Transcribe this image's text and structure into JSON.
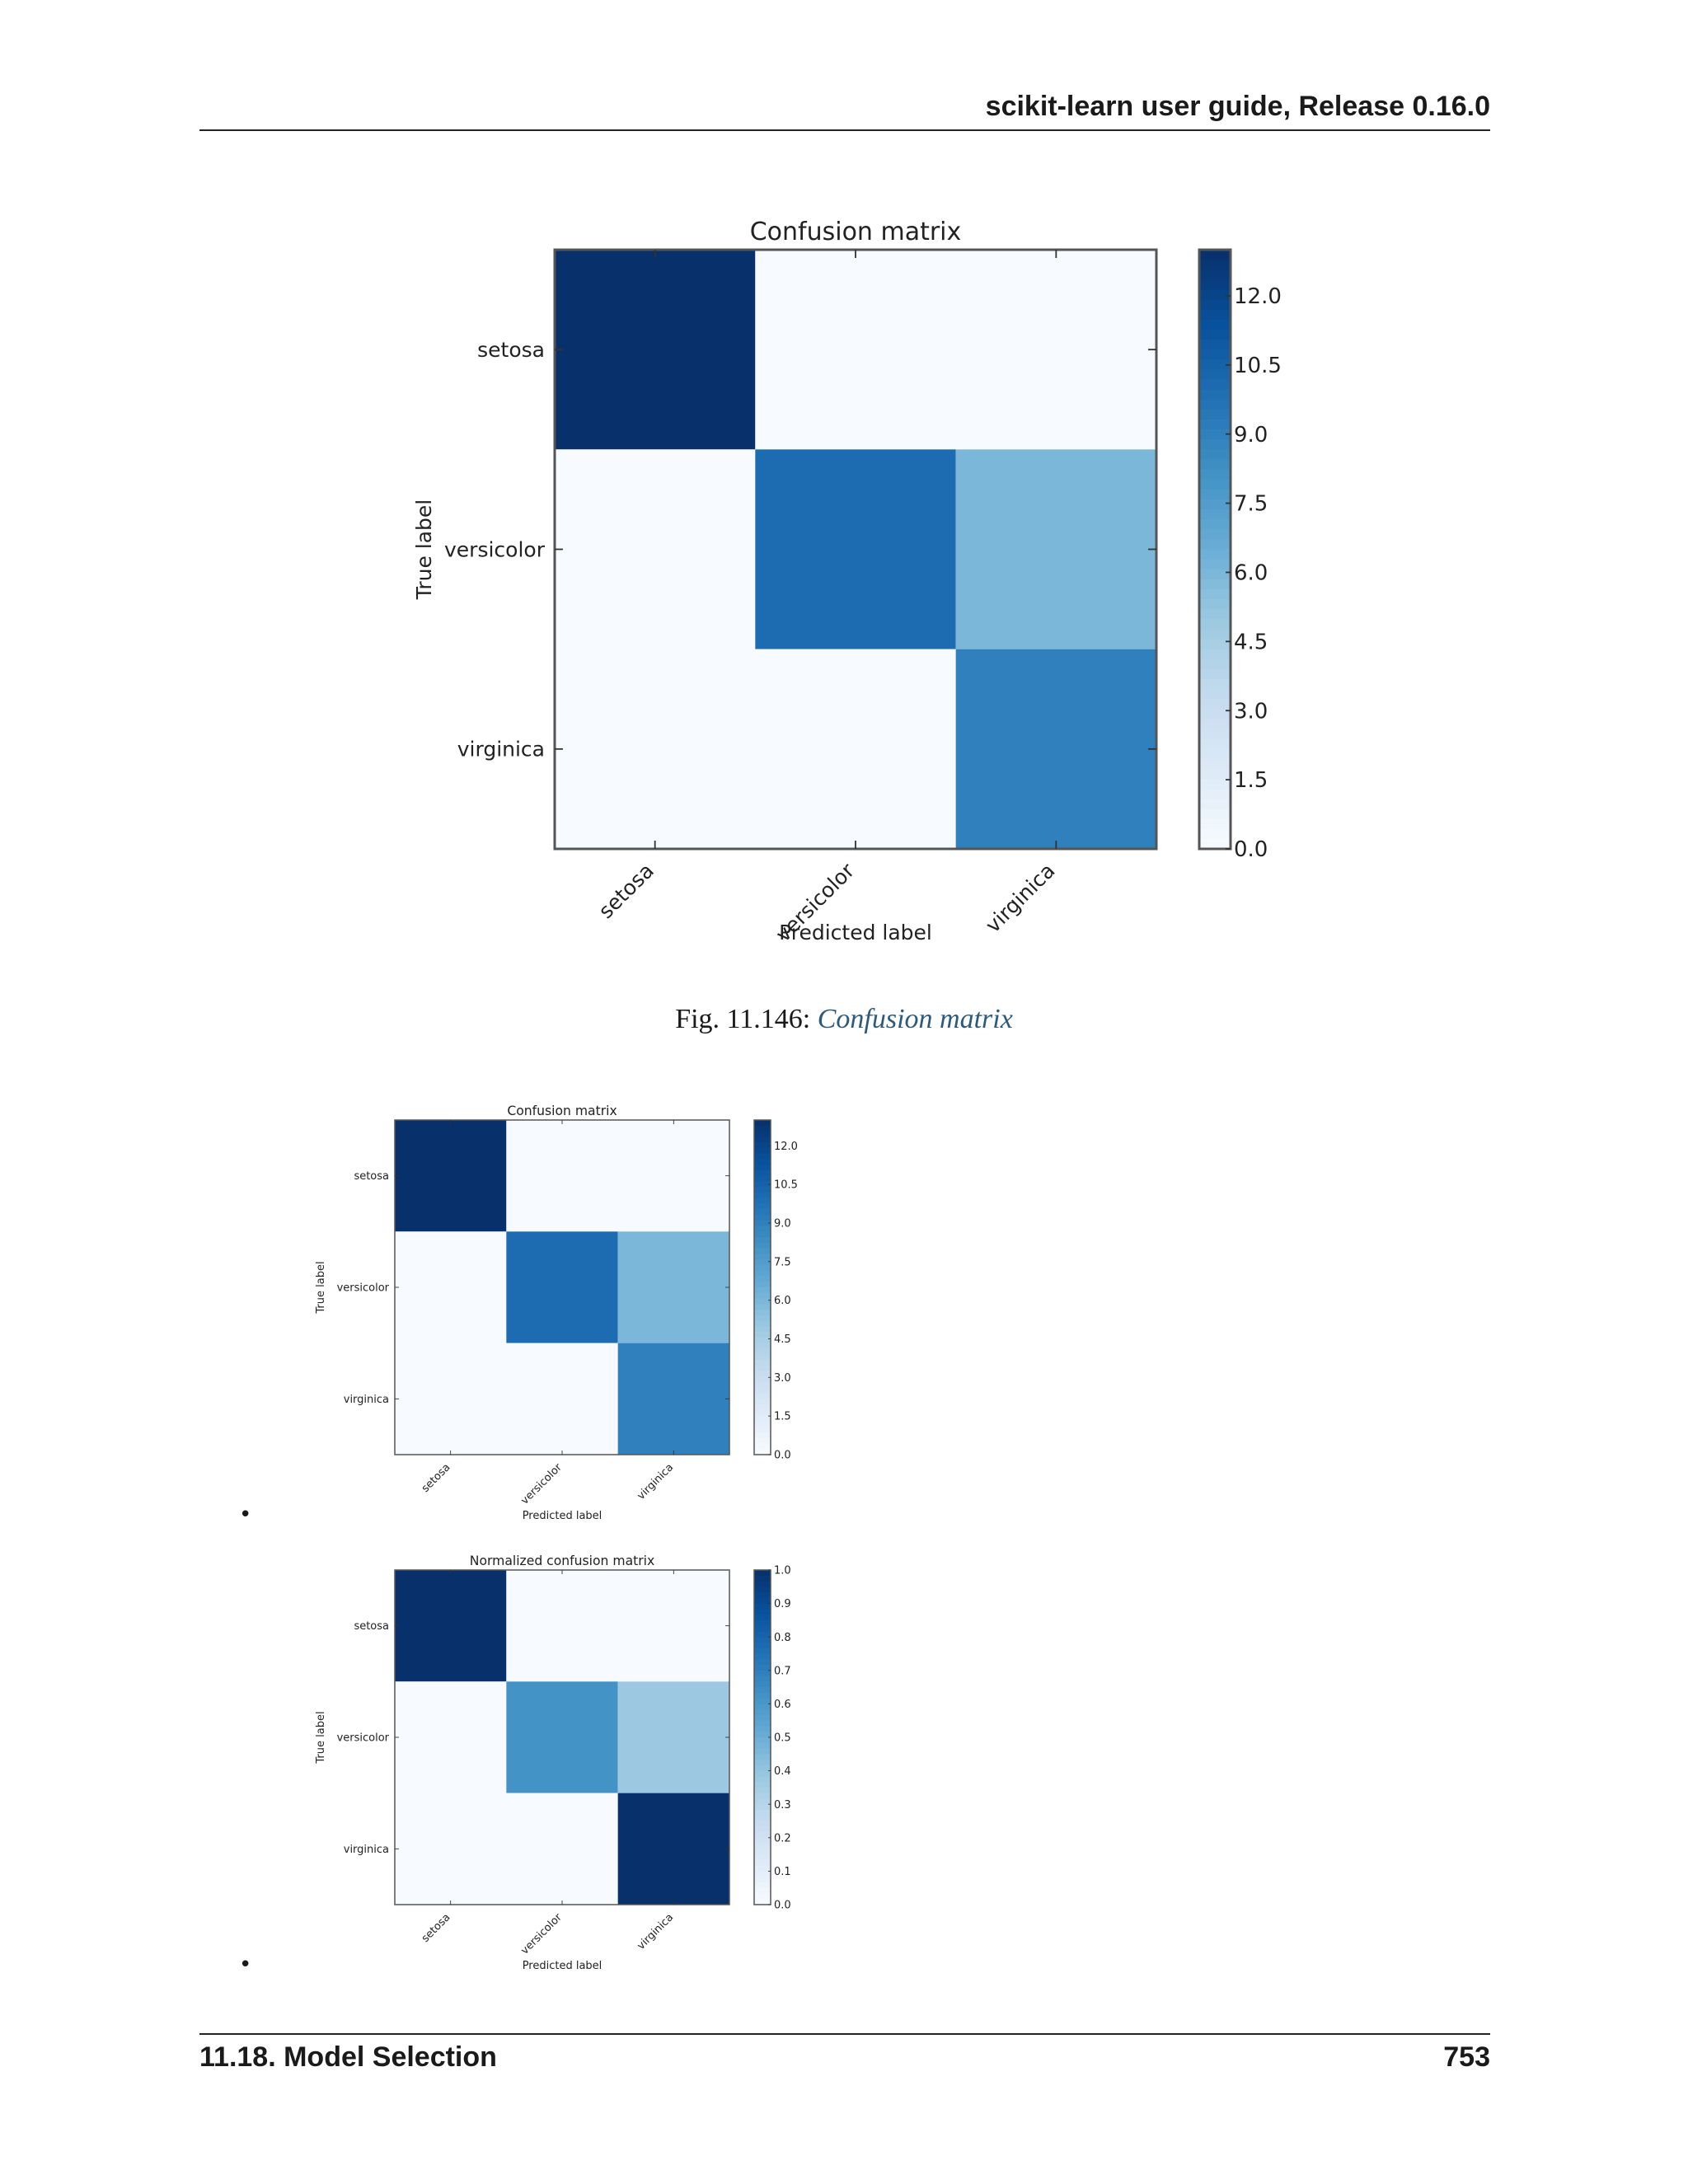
{
  "header": {
    "title": "scikit-learn user guide, Release 0.16.0"
  },
  "figure": {
    "label": "Fig. 11.146:",
    "caption_link": "Confusion matrix"
  },
  "list": {
    "bullet": "•"
  },
  "footer": {
    "section": "11.18. Model Selection",
    "page": "753"
  },
  "chart_data": [
    {
      "type": "heatmap",
      "title": "Confusion matrix",
      "xlabel": "Predicted label",
      "ylabel": "True label",
      "x_categories": [
        "setosa",
        "versicolor",
        "virginica"
      ],
      "y_categories": [
        "setosa",
        "versicolor",
        "virginica"
      ],
      "values": [
        [
          13,
          0,
          0
        ],
        [
          0,
          10,
          6
        ],
        [
          0,
          0,
          9
        ]
      ],
      "colorbar_ticks": [
        "12.0",
        "10.5",
        "9.0",
        "7.5",
        "6.0",
        "4.5",
        "3.0",
        "1.5",
        "0.0"
      ],
      "color_range": [
        0,
        13
      ],
      "colormap": [
        "#f7fbff",
        "#deebf7",
        "#c6dbef",
        "#9ecae1",
        "#6baed6",
        "#4292c6",
        "#2171b5",
        "#08519c",
        "#08306b"
      ]
    },
    {
      "type": "heatmap",
      "title": "Confusion matrix",
      "xlabel": "Predicted label",
      "ylabel": "True label",
      "x_categories": [
        "setosa",
        "versicolor",
        "virginica"
      ],
      "y_categories": [
        "setosa",
        "versicolor",
        "virginica"
      ],
      "values": [
        [
          13,
          0,
          0
        ],
        [
          0,
          10,
          6
        ],
        [
          0,
          0,
          9
        ]
      ],
      "colorbar_ticks": [
        "12.0",
        "10.5",
        "9.0",
        "7.5",
        "6.0",
        "4.5",
        "3.0",
        "1.5",
        "0.0"
      ],
      "color_range": [
        0,
        13
      ],
      "colormap": [
        "#f7fbff",
        "#deebf7",
        "#c6dbef",
        "#9ecae1",
        "#6baed6",
        "#4292c6",
        "#2171b5",
        "#08519c",
        "#08306b"
      ]
    },
    {
      "type": "heatmap",
      "title": "Normalized confusion matrix",
      "xlabel": "Predicted label",
      "ylabel": "True label",
      "x_categories": [
        "setosa",
        "versicolor",
        "virginica"
      ],
      "y_categories": [
        "setosa",
        "versicolor",
        "virginica"
      ],
      "values": [
        [
          1.0,
          0.0,
          0.0
        ],
        [
          0.0,
          0.62,
          0.38
        ],
        [
          0.0,
          0.0,
          1.0
        ]
      ],
      "colorbar_ticks": [
        "1.0",
        "0.9",
        "0.8",
        "0.7",
        "0.6",
        "0.5",
        "0.4",
        "0.3",
        "0.2",
        "0.1",
        "0.0"
      ],
      "color_range": [
        0,
        1
      ],
      "colormap": [
        "#f7fbff",
        "#deebf7",
        "#c6dbef",
        "#9ecae1",
        "#6baed6",
        "#4292c6",
        "#2171b5",
        "#08519c",
        "#08306b"
      ]
    }
  ]
}
